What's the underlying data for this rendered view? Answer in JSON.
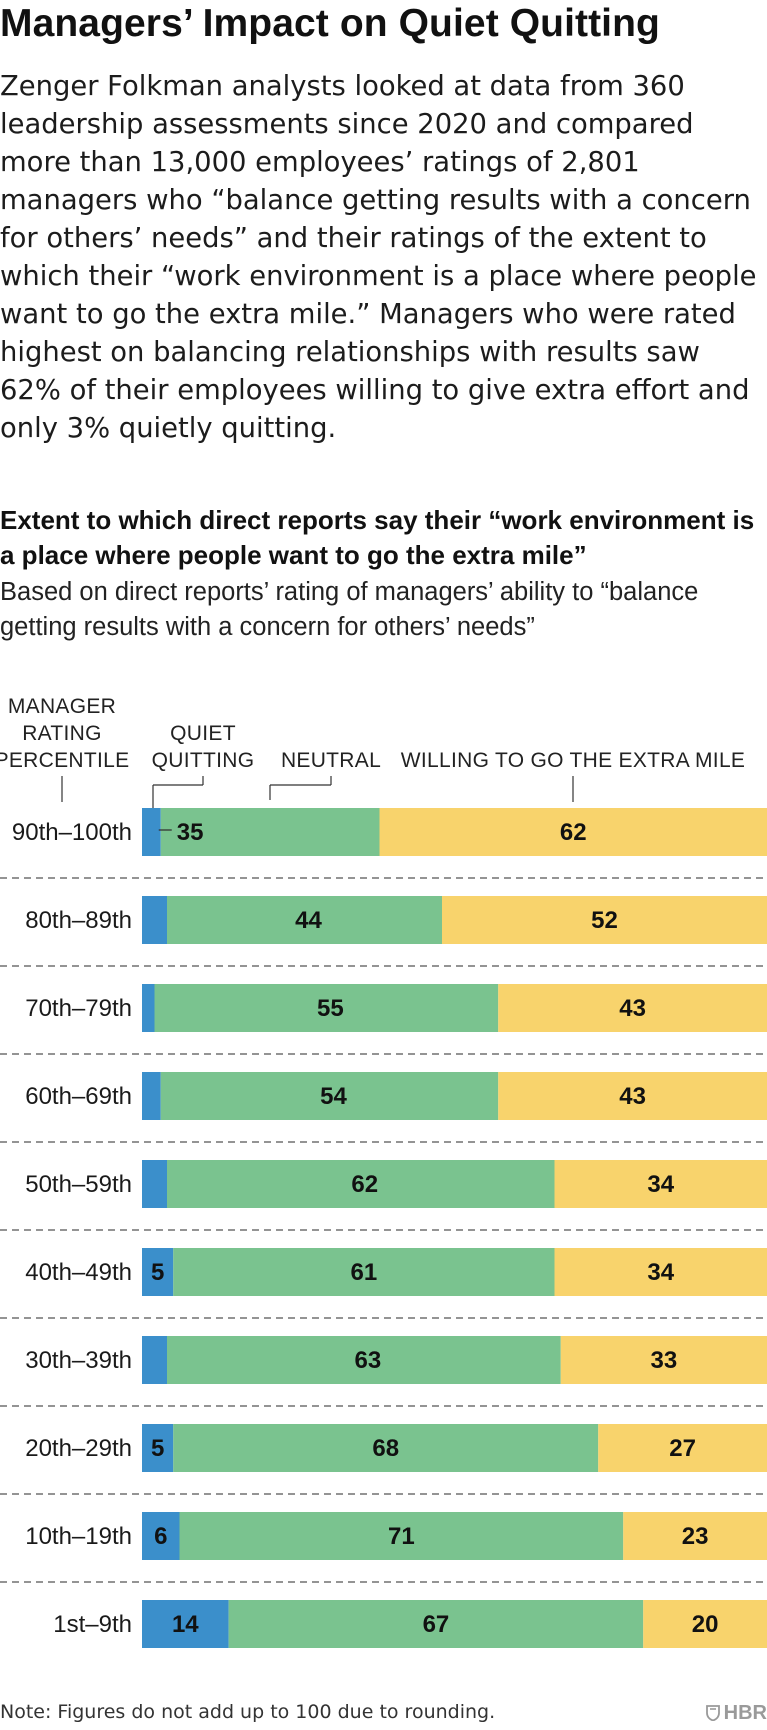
{
  "header": {
    "title": "Managers’ Impact on Quiet Quitting",
    "intro": "Zenger Folkman analysts looked at data from 360 leadership assessments since 2020 and compared more than 13,000 employees’ ratings of 2,801 managers who “balance getting results with a concern for others’ needs” and their ratings of the extent to which their “work environment is a place where people want to go the extra mile.” Managers who were rated highest on balancing relationships with results saw 62% of their employees willing to give extra effort and only 3% quietly quitting."
  },
  "footer": {
    "note": "Note: Figures do not add up to 100 due to rounding.",
    "logo_text": "HBR",
    "logo_icon": "hbr-shield-icon"
  },
  "colors": {
    "quiet_quitting": "#3b8fcb",
    "neutral": "#7ac38f",
    "extra_mile": "#f8d36c",
    "separator": "#555555"
  },
  "chart_data": {
    "type": "bar",
    "orientation": "horizontal",
    "stacked": true,
    "title": "Extent to which direct reports say their “work environment is a place where people want to go the extra mile”",
    "subtitle": "Based on direct reports’ rating of managers’ ability to “balance getting results with a concern for others’ needs”",
    "category_header": [
      "MANAGER",
      "RATING",
      "PERCENTILE"
    ],
    "categories": [
      "90th–100th",
      "80th–89th",
      "70th–79th",
      "60th–69th",
      "50th–59th",
      "40th–49th",
      "30th–39th",
      "20th–29th",
      "10th–19th",
      "1st–9th"
    ],
    "series": [
      {
        "name": "QUIET QUITTING",
        "header_lines": [
          "QUIET",
          "QUITTING"
        ],
        "values": [
          3,
          4,
          2,
          3,
          4,
          5,
          4,
          5,
          6,
          14
        ],
        "color": "#3b8fcb"
      },
      {
        "name": "NEUTRAL",
        "header_lines": [
          "NEUTRAL"
        ],
        "values": [
          35,
          44,
          55,
          54,
          62,
          61,
          63,
          68,
          71,
          67
        ],
        "color": "#7ac38f"
      },
      {
        "name": "WILLING TO GO THE EXTRA MILE",
        "header_lines": [
          "WILLING TO GO THE EXTRA MILE"
        ],
        "values": [
          62,
          52,
          43,
          43,
          34,
          34,
          33,
          27,
          23,
          20
        ],
        "color": "#f8d36c"
      }
    ],
    "data_labels": [
      [
        "3%",
        "35",
        "62"
      ],
      [
        "4",
        "44",
        "52"
      ],
      [
        "2",
        "55",
        "43"
      ],
      [
        "3",
        "54",
        "43"
      ],
      [
        "4",
        "62",
        "34"
      ],
      [
        "5",
        "61",
        "34"
      ],
      [
        "4",
        "63",
        "33"
      ],
      [
        "5",
        "68",
        "27"
      ],
      [
        "6",
        "71",
        "23"
      ],
      [
        "14",
        "67",
        "20"
      ]
    ],
    "row_separators": "dashed",
    "legend": "column headers above bars"
  }
}
